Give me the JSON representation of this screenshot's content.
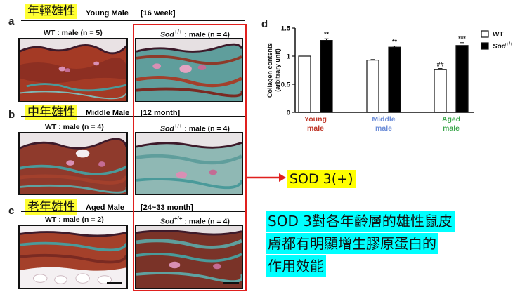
{
  "row_a": {
    "letter": "a",
    "cn_label": "年輕雄性",
    "en_label": "Young Male",
    "age": "[16 week]",
    "en_color": "#c0392b",
    "wt_title": "WT : male (n = 5)",
    "sod_title_prefix": "Sod",
    "sod_title_sup": "+/+",
    "sod_title_suffix": " : male (n = 4)"
  },
  "row_b": {
    "letter": "b",
    "cn_label": "中年雄性",
    "en_label": "Middle Male",
    "age": "[12 month]",
    "en_color": "#6f8fd8",
    "wt_title": "WT : male (n = 4)",
    "sod_title_prefix": "Sod",
    "sod_title_sup": "+/+",
    "sod_title_suffix": " : male (n = 4)"
  },
  "row_c": {
    "letter": "c",
    "cn_label": "老年雄性",
    "en_label": "Aged Male",
    "age": "[24~33 month]",
    "en_color": "#3aa64a",
    "wt_title": "WT : male (n = 2)",
    "sod_title_prefix": "Sod",
    "sod_title_sup": "+/+",
    "sod_title_suffix": " : male (n = 4)"
  },
  "chart_letter": "d",
  "arrow_label": "SOD 3(+)",
  "note": {
    "line1": "SOD 3對各年齡層的雄性鼠皮",
    "line2": "膚都有明顯增生膠原蛋白的",
    "line3": "作用效能"
  },
  "colors": {
    "highlight_yellow": "#ffff33",
    "highlight_cyan": "#00ffff",
    "red_box": "#e0201e",
    "wt_bar": "#ffffff",
    "sod_bar": "#000000"
  },
  "chart_data": {
    "type": "bar",
    "ylabel_line1": "Collagen contents",
    "ylabel_line2": "(arbitrary unit)",
    "ylim": [
      0,
      1.5
    ],
    "yticks": [
      "0",
      "0.5",
      "1",
      "1.5"
    ],
    "categories": [
      {
        "line1": "Young",
        "line2": "male",
        "color": "#c0392b"
      },
      {
        "line1": "Middle",
        "line2": "male",
        "color": "#6f8fd8"
      },
      {
        "line1": "Aged",
        "line2": "male",
        "color": "#3aa64a"
      }
    ],
    "series": [
      {
        "name": "WT",
        "values": [
          1.0,
          0.93,
          0.76
        ],
        "errors": [
          0.0,
          0.01,
          0.02
        ],
        "fill": "#ffffff",
        "marks": [
          "",
          "",
          "##"
        ]
      },
      {
        "name": "Sod+/+",
        "values": [
          1.28,
          1.16,
          1.19
        ],
        "errors": [
          0.03,
          0.02,
          0.05
        ],
        "fill": "#000000",
        "marks": [
          "**",
          "**",
          "***"
        ]
      }
    ],
    "legend": {
      "wt": "WT",
      "sod_prefix": "Sod",
      "sod_sup": "+/+"
    },
    "legend_position": "top-right"
  }
}
